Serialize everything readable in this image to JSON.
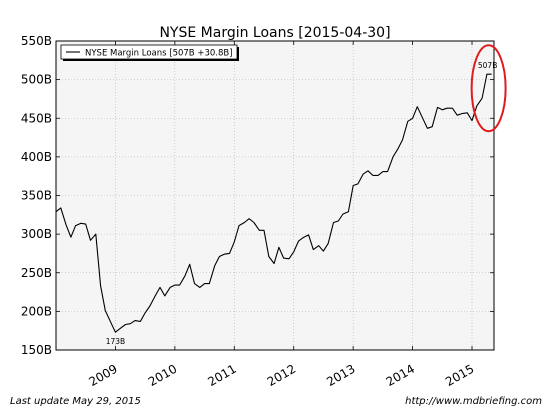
{
  "chart_data": {
    "type": "line",
    "title": "NYSE Margin Loans  [2015-04-30]",
    "xlabel": "",
    "ylabel": "",
    "ylim": [
      150,
      550
    ],
    "xlim": [
      2008.0,
      2015.37
    ],
    "y_ticks": [
      "150B",
      "200B",
      "250B",
      "300B",
      "350B",
      "400B",
      "450B",
      "500B",
      "550B"
    ],
    "x_ticks": [
      "2009",
      "2010",
      "2011",
      "2012",
      "2013",
      "2014",
      "2015"
    ],
    "grid": true,
    "legend_position": "top-left",
    "series": [
      {
        "name": "NYSE Margin Loans [507B +30.8B]",
        "color": "#000000",
        "x": [
          2008.0,
          2008.08,
          2008.17,
          2008.25,
          2008.33,
          2008.42,
          2008.5,
          2008.58,
          2008.67,
          2008.75,
          2008.83,
          2008.92,
          2009.0,
          2009.08,
          2009.17,
          2009.25,
          2009.33,
          2009.42,
          2009.5,
          2009.58,
          2009.67,
          2009.75,
          2009.83,
          2009.92,
          2010.0,
          2010.08,
          2010.17,
          2010.25,
          2010.33,
          2010.42,
          2010.5,
          2010.58,
          2010.67,
          2010.75,
          2010.83,
          2010.92,
          2011.0,
          2011.08,
          2011.17,
          2011.25,
          2011.33,
          2011.42,
          2011.5,
          2011.58,
          2011.67,
          2011.75,
          2011.83,
          2011.92,
          2012.0,
          2012.08,
          2012.17,
          2012.25,
          2012.33,
          2012.42,
          2012.5,
          2012.58,
          2012.67,
          2012.75,
          2012.83,
          2012.92,
          2013.0,
          2013.08,
          2013.17,
          2013.25,
          2013.33,
          2013.42,
          2013.5,
          2013.58,
          2013.67,
          2013.75,
          2013.83,
          2013.92,
          2014.0,
          2014.08,
          2014.17,
          2014.25,
          2014.33,
          2014.42,
          2014.5,
          2014.58,
          2014.67,
          2014.75,
          2014.83,
          2014.92,
          2015.0,
          2015.08,
          2015.17,
          2015.25,
          2015.33
        ],
        "y": [
          329,
          334,
          312,
          296,
          311,
          314,
          313,
          292,
          300,
          233,
          201,
          186,
          173,
          178,
          183,
          184,
          188,
          187,
          198,
          207,
          220,
          231,
          220,
          231,
          234,
          234,
          246,
          261,
          236,
          231,
          236,
          236,
          259,
          271,
          274,
          275,
          290,
          311,
          315,
          320,
          315,
          305,
          305,
          271,
          262,
          283,
          269,
          268,
          277,
          291,
          296,
          299,
          280,
          285,
          278,
          288,
          315,
          317,
          326,
          329,
          363,
          365,
          378,
          382,
          376,
          376,
          381,
          381,
          400,
          410,
          422,
          446,
          450,
          465,
          450,
          437,
          439,
          464,
          461,
          463,
          463,
          454,
          456,
          457,
          447,
          466,
          476,
          507,
          507
        ]
      }
    ],
    "annotations": [
      {
        "text": "173B",
        "x": 2009.0,
        "y": 173
      },
      {
        "text": "507B",
        "x": 2015.33,
        "y": 507
      }
    ],
    "highlight": {
      "shape": "ellipse",
      "color": "#e01b1b",
      "around": "507B"
    }
  },
  "footer": {
    "left": "Last update May 29, 2015",
    "right": "http://www.mdbriefing.com"
  }
}
